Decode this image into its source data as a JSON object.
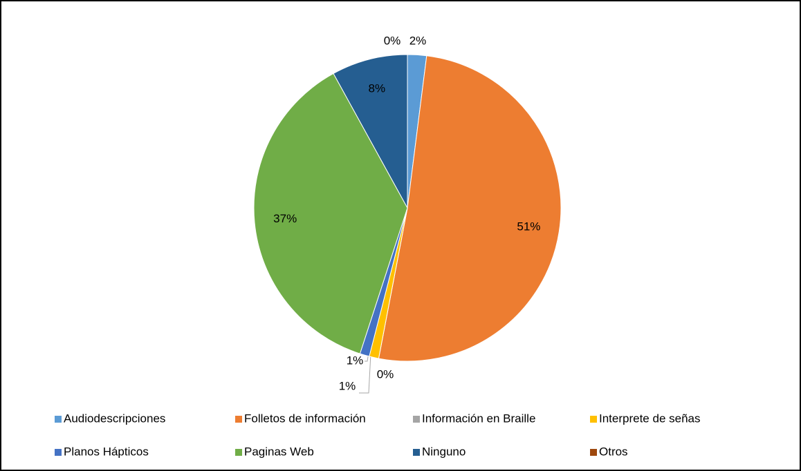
{
  "chart_data": {
    "type": "pie",
    "categories": [
      "Audiodescripciones",
      "Folletos de información",
      "Información en Braille",
      "Interprete de señas",
      "Planos Hápticos",
      "Paginas Web",
      "Ninguno",
      "Otros"
    ],
    "values": [
      2,
      51,
      0,
      1,
      1,
      37,
      8,
      0
    ],
    "value_labels": [
      "2%",
      "51%",
      "0%",
      "1%",
      "1%",
      "37%",
      "8%",
      "0%"
    ],
    "colors": [
      "#5b9bd5",
      "#ed7d31",
      "#a5a5a5",
      "#ffc000",
      "#4472c4",
      "#70ad47",
      "#255e91",
      "#9e480e"
    ],
    "legend": "bottom"
  }
}
